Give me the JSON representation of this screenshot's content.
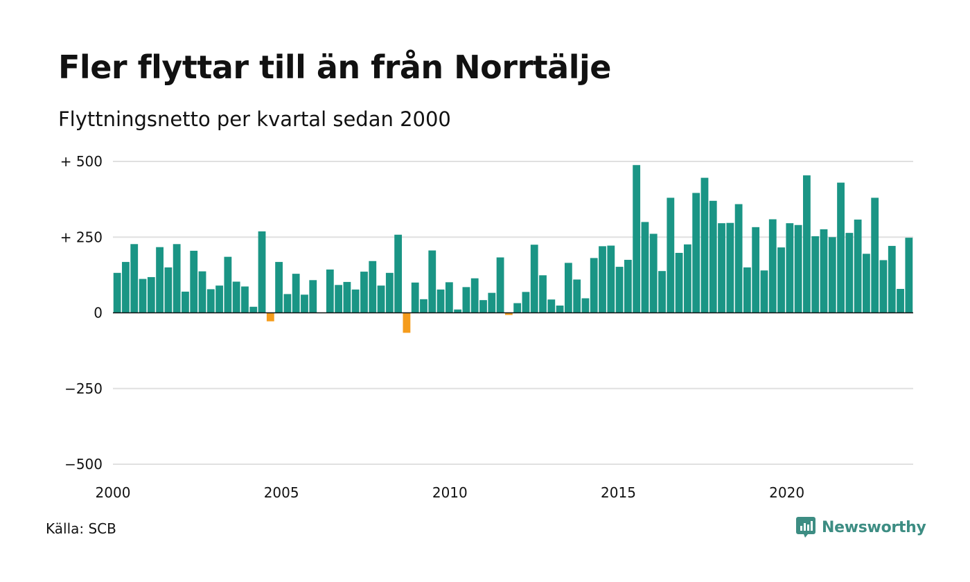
{
  "title": "Fler flyttar till än från Norrtälje",
  "subtitle": "Flyttningsnetto per kvartal sedan 2000",
  "source": "Källa: SCB",
  "brand": {
    "name": "Newsworthy",
    "icon": "newsworthy-logo-icon"
  },
  "colors": {
    "positive": "#1a9585",
    "negative": "#f59c1c",
    "grid": "#e0e0e0",
    "axis": "#111111"
  },
  "chart_data": {
    "type": "bar",
    "title": "Fler flyttar till än från Norrtälje",
    "subtitle": "Flyttningsnetto per kvartal sedan 2000",
    "xlabel": "",
    "ylabel": "",
    "ylim": [
      -500,
      500
    ],
    "yticks": [
      500,
      250,
      0,
      -250,
      -500
    ],
    "ytick_labels": [
      "+ 500",
      "+ 250",
      "0",
      "−250",
      "−500"
    ],
    "xticks": [
      2000,
      2005,
      2010,
      2015,
      2020
    ],
    "xlim": [
      2000,
      2023.75
    ],
    "grid": true,
    "legend": "none",
    "x_start_year": 2000,
    "quarters_per_year": 4,
    "values": [
      132,
      168,
      227,
      112,
      118,
      217,
      150,
      227,
      70,
      205,
      137,
      78,
      90,
      185,
      103,
      87,
      20,
      269,
      -28,
      168,
      62,
      129,
      60,
      108,
      0,
      143,
      92,
      102,
      77,
      136,
      171,
      90,
      132,
      258,
      -66,
      100,
      45,
      206,
      77,
      101,
      11,
      85,
      114,
      42,
      66,
      183,
      -7,
      32,
      69,
      225,
      124,
      44,
      24,
      165,
      110,
      48,
      181,
      220,
      222,
      152,
      175,
      488,
      300,
      261,
      138,
      380,
      198,
      226,
      396,
      446,
      370,
      296,
      297,
      359,
      150,
      283,
      140,
      309,
      216,
      296,
      290,
      454,
      253,
      276,
      250,
      430,
      264,
      308,
      195,
      380,
      174,
      221,
      79,
      248
    ]
  }
}
